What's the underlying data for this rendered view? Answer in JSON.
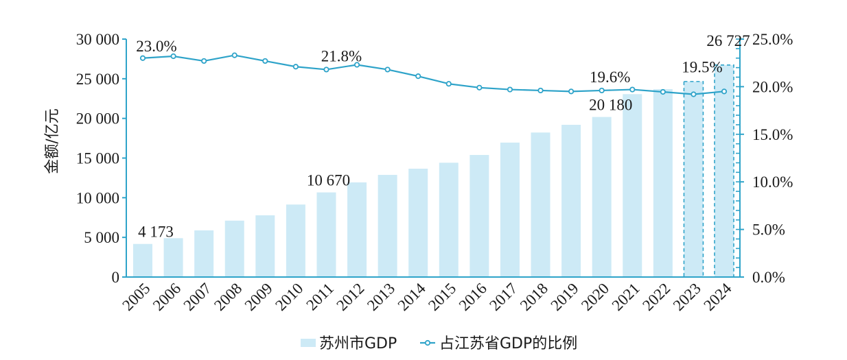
{
  "chart_data": {
    "type": "bar+line",
    "title": "",
    "xlabel": "",
    "ylabel": "金额/亿元",
    "ylabel_right": "",
    "categories": [
      "2005",
      "2006",
      "2007",
      "2008",
      "2009",
      "2010",
      "2011",
      "2012",
      "2013",
      "2014",
      "2015",
      "2016",
      "2017",
      "2018",
      "2019",
      "2020",
      "2021",
      "2022",
      "2023",
      "2024"
    ],
    "ylim": [
      0,
      30000
    ],
    "ylim_right": [
      0,
      25
    ],
    "yticks": [
      0,
      5000,
      10000,
      15000,
      20000,
      25000,
      30000
    ],
    "ytick_labels": [
      "0",
      "5 000",
      "10 000",
      "15 000",
      "20 000",
      "25 000",
      "30 000"
    ],
    "yticks_right": [
      0,
      5,
      10,
      15,
      20,
      25
    ],
    "ytick_labels_right": [
      "0.0%",
      "5.0%",
      "10.0%",
      "15.0%",
      "20.0%",
      "25.0%"
    ],
    "right_minor_ticks_per_major": 4,
    "grid": false,
    "legend_position": "bottom-center",
    "series": [
      {
        "name": "苏州市GDP",
        "type": "bar",
        "axis": "left",
        "color": "#cdeaf6",
        "values": [
          4173,
          4900,
          5880,
          7110,
          7780,
          9140,
          10670,
          11930,
          12880,
          13660,
          14410,
          15390,
          16950,
          18220,
          19190,
          20180,
          23060,
          23690,
          24650,
          26727
        ],
        "dashed_outline_categories": [
          "2023",
          "2024"
        ],
        "dashed_outline_color": "#2ea3c9",
        "data_labels": [
          {
            "category": "2005",
            "text": "4 173"
          },
          {
            "category": "2011",
            "text": "10 670"
          },
          {
            "category": "2020",
            "text": "20 180"
          },
          {
            "category": "2024",
            "text": "26 727"
          }
        ]
      },
      {
        "name": "占江苏省GDP的比例",
        "type": "line",
        "axis": "right",
        "color": "#2ea3c9",
        "marker": "hollow-circle",
        "values": [
          23.0,
          23.2,
          22.7,
          23.3,
          22.7,
          22.1,
          21.8,
          22.3,
          21.8,
          21.1,
          20.3,
          19.9,
          19.7,
          19.6,
          19.5,
          19.6,
          19.7,
          19.45,
          19.2,
          19.5
        ],
        "data_labels": [
          {
            "category": "2005",
            "text": "23.0%"
          },
          {
            "category": "2011",
            "text": "21.8%"
          },
          {
            "category": "2020",
            "text": "19.6%"
          },
          {
            "category": "2024",
            "text": "19.5%"
          }
        ]
      }
    ]
  },
  "colors": {
    "axis": "#2ea3c9",
    "bar": "#cdeaf6",
    "line": "#2ea3c9",
    "text": "#1a1a1a"
  }
}
